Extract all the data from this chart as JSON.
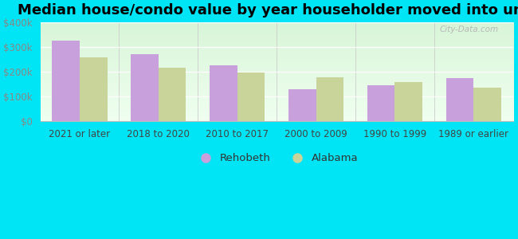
{
  "title": "Median house/condo value by year householder moved into unit",
  "categories": [
    "2021 or later",
    "2018 to 2020",
    "2010 to 2017",
    "2000 to 2009",
    "1990 to 1999",
    "1989 or earlier"
  ],
  "rehobeth_values": [
    325000,
    270000,
    225000,
    130000,
    145000,
    175000
  ],
  "alabama_values": [
    258000,
    218000,
    197000,
    178000,
    158000,
    135000
  ],
  "rehobeth_color": "#c8a0dc",
  "alabama_color": "#c8d49a",
  "background_outer": "#00e5f5",
  "background_grad_top": "#f0fff0",
  "background_grad_bottom": "#d8f5d8",
  "ylim": [
    0,
    400000
  ],
  "yticks": [
    0,
    100000,
    200000,
    300000,
    400000
  ],
  "ytick_labels": [
    "$0",
    "$100k",
    "$200k",
    "$300k",
    "$400k"
  ],
  "bar_width": 0.35,
  "legend_labels": [
    "Rehobeth",
    "Alabama"
  ],
  "watermark": "City-Data.com",
  "title_fontsize": 13,
  "tick_fontsize": 8.5,
  "legend_fontsize": 9.5,
  "grid_color": "#ffffff",
  "spine_color": "#bbbbbb",
  "ytick_color": "#888888",
  "xtick_color": "#444444"
}
